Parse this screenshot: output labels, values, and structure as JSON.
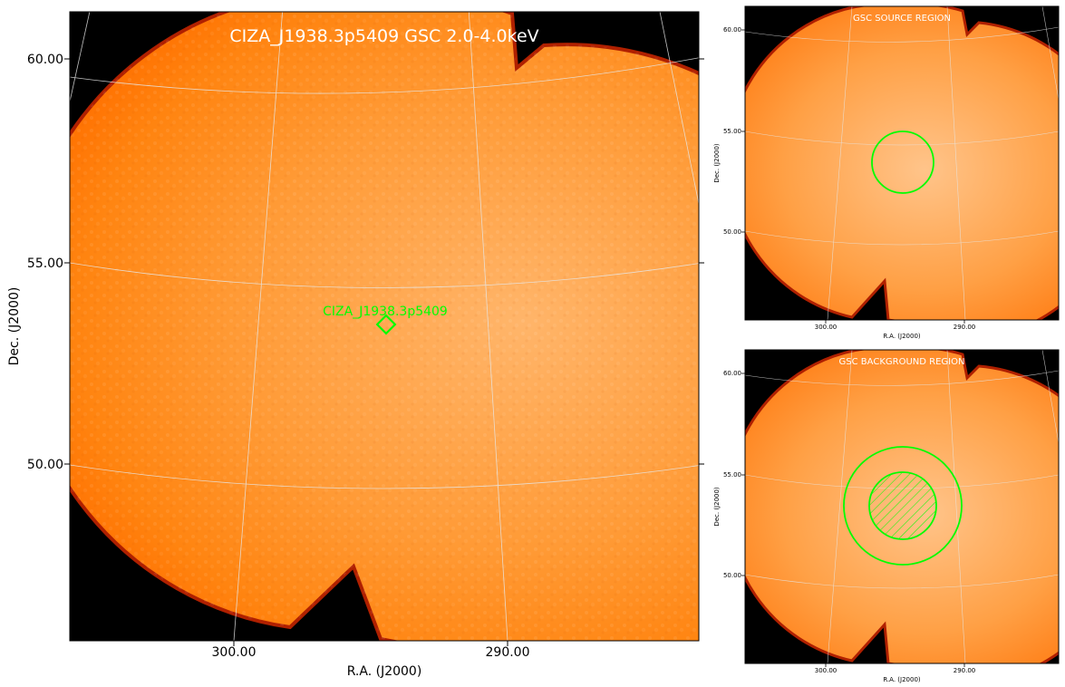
{
  "colors": {
    "background": "#000000",
    "sky": "#ff8c1a",
    "sky_edge": "#c02000",
    "grid": "#e6e6e6",
    "region": "#00ff00",
    "title_text": "#ffffff",
    "axis_text": "#000000"
  },
  "main_panel": {
    "title": "CIZA_J1938.3p5409 GSC 2.0-4.0keV",
    "xlabel": "R.A. (J2000)",
    "ylabel": "Dec. (J2000)",
    "xticks": [
      "300.00",
      "290.00"
    ],
    "yticks": [
      "60.00",
      "55.00",
      "50.00"
    ],
    "marker_label": "CIZA_J1938.3p5409"
  },
  "source_panel": {
    "title": "GSC SOURCE REGION",
    "xlabel": "R.A. (J2000)",
    "ylabel": "Dec. (J2000)",
    "xticks": [
      "300.00",
      "290.00"
    ],
    "yticks": [
      "60.00",
      "55.00",
      "50.00"
    ]
  },
  "background_panel": {
    "title": "GSC BACKGROUND REGION",
    "xlabel": "R.A. (J2000)",
    "ylabel": "Dec. (J2000)",
    "xticks": [
      "300.00",
      "290.00"
    ],
    "yticks": [
      "60.00",
      "55.00",
      "50.00"
    ]
  }
}
